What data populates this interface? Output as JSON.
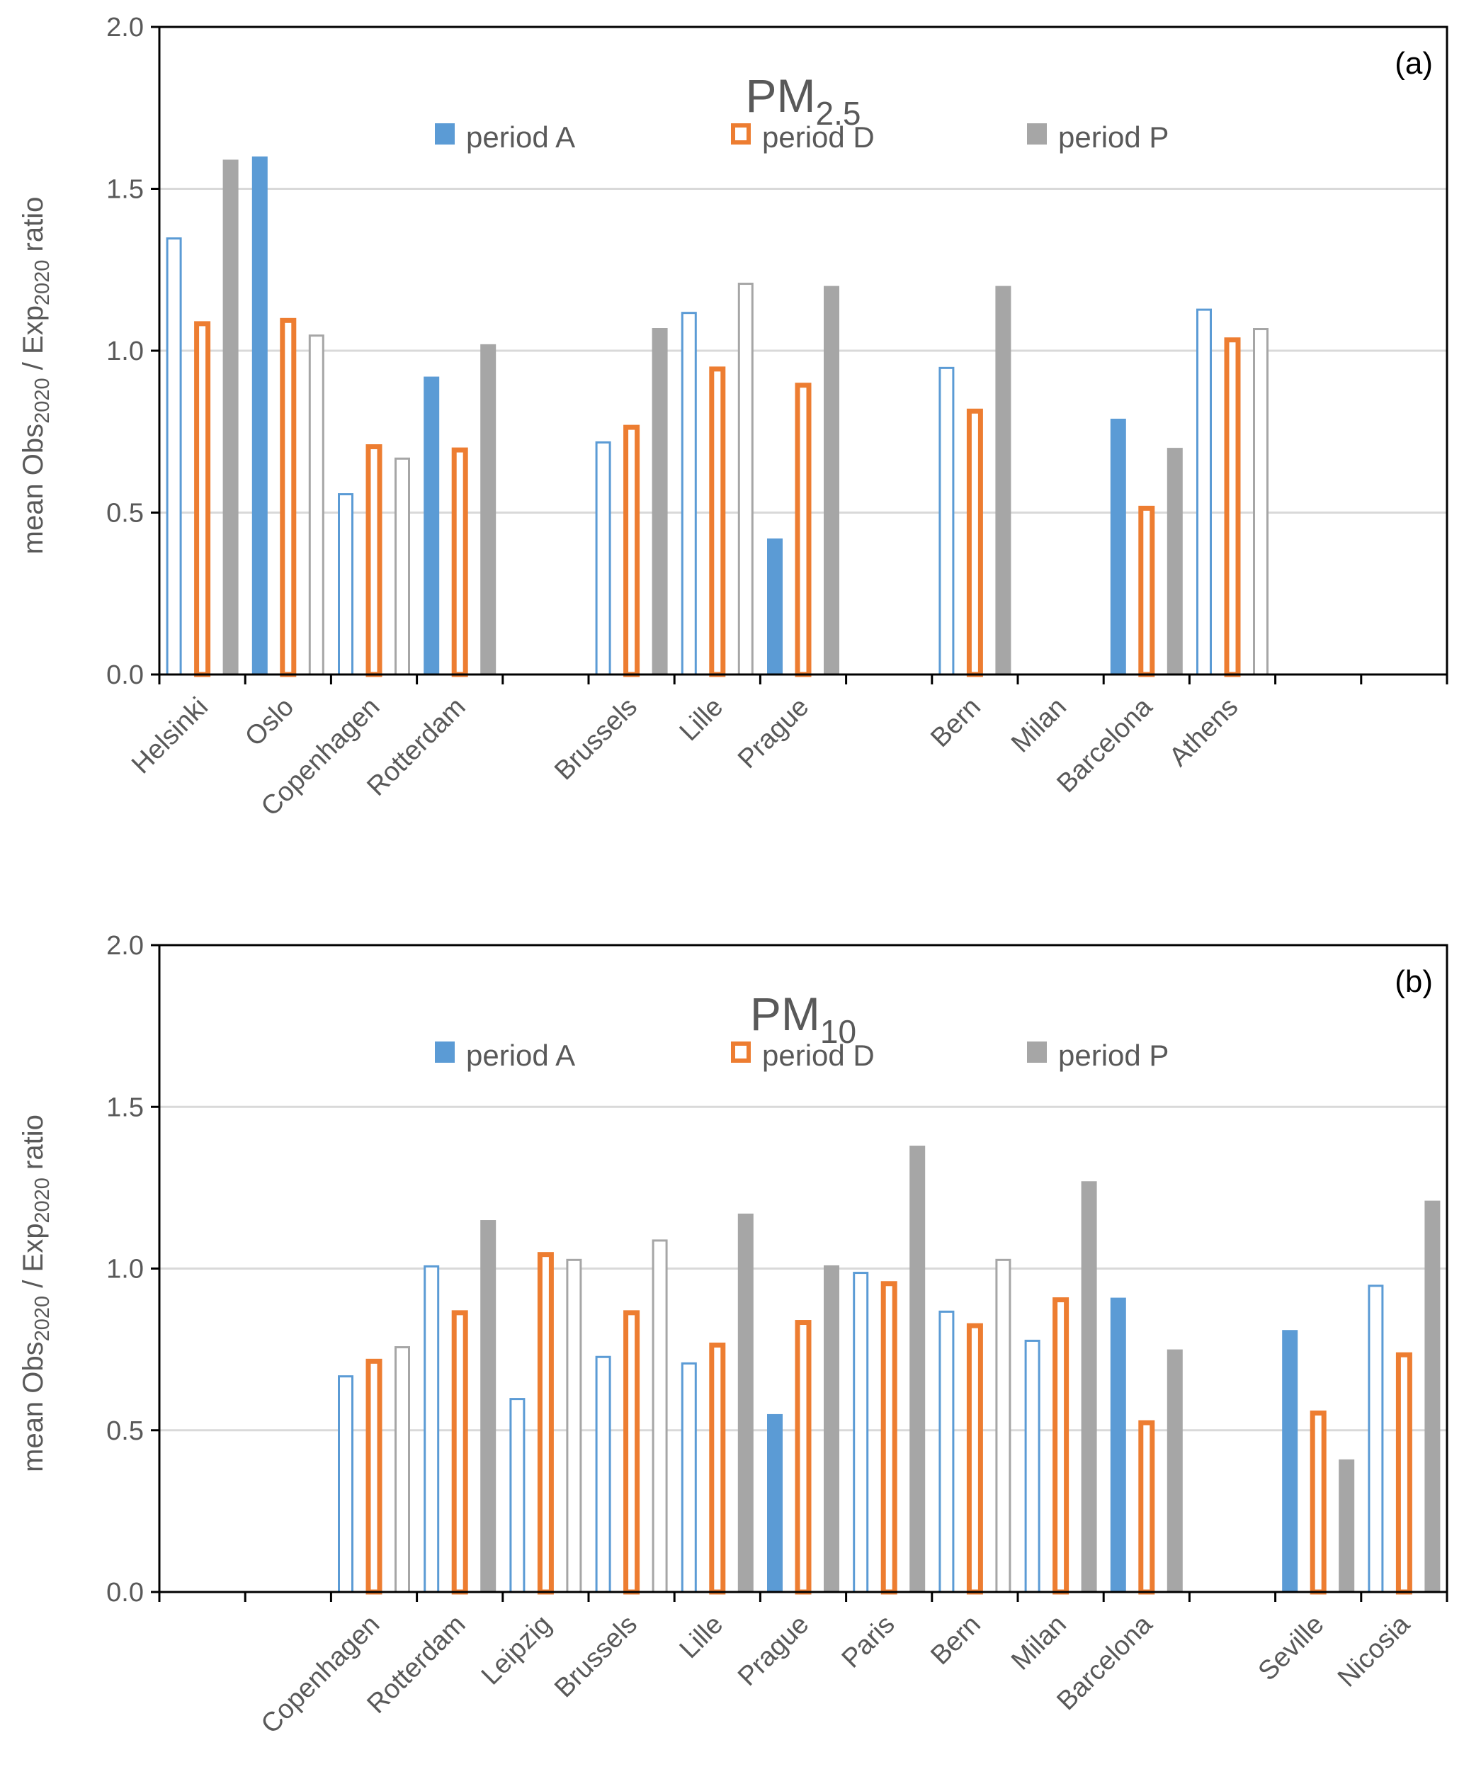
{
  "colors": {
    "periodA": "#5b9bd5",
    "periodD": "#ed7d31",
    "periodP": "#a6a6a6",
    "grid": "#d9d9d9",
    "axis": "#000000",
    "text": "#595959"
  },
  "chart_data": [
    {
      "type": "bar",
      "panel": "(a)",
      "title": "PM",
      "title_sub": "2.5",
      "ylabel": {
        "pre": "mean Obs",
        "sub1": "2020",
        "mid": " / Exp",
        "sub2": "2020",
        "post": " ratio"
      },
      "ylim": [
        0,
        2
      ],
      "yticks": [
        0,
        0.5,
        1,
        1.5,
        2
      ],
      "ytick_labels": [
        "0.0",
        "0.5",
        "1.0",
        "1.5",
        "2.0"
      ],
      "grid": true,
      "legend": {
        "labels": [
          "period A",
          "period D",
          "period P"
        ],
        "placement": "top-center"
      },
      "categories": [
        "Helsinki",
        "Oslo",
        "Copenhagen",
        "Rotterdam",
        "",
        "Brussels",
        "Lille",
        "Prague",
        "",
        "Bern",
        "Milan",
        "Barcelona",
        "Athens",
        "",
        ""
      ],
      "series": [
        {
          "name": "period A",
          "values": [
            1.35,
            1.6,
            0.56,
            0.92,
            null,
            0.72,
            1.12,
            0.42,
            null,
            0.95,
            null,
            0.79,
            1.13,
            null,
            null
          ],
          "filled": [
            false,
            true,
            false,
            true,
            null,
            false,
            false,
            true,
            null,
            false,
            null,
            true,
            false,
            null,
            null
          ]
        },
        {
          "name": "period D",
          "values": [
            1.09,
            1.1,
            0.71,
            0.7,
            null,
            0.77,
            0.95,
            0.9,
            null,
            0.82,
            null,
            0.52,
            1.04,
            null,
            null
          ],
          "filled": [
            false,
            false,
            false,
            false,
            null,
            false,
            false,
            false,
            null,
            false,
            null,
            false,
            false,
            null,
            null
          ]
        },
        {
          "name": "period P",
          "values": [
            1.59,
            1.05,
            0.67,
            1.02,
            null,
            1.07,
            1.21,
            1.2,
            null,
            1.2,
            null,
            0.7,
            1.07,
            null,
            null
          ],
          "filled": [
            true,
            false,
            false,
            true,
            null,
            true,
            false,
            true,
            null,
            true,
            null,
            true,
            false,
            null,
            null
          ]
        }
      ]
    },
    {
      "type": "bar",
      "panel": "(b)",
      "title": "PM",
      "title_sub": "10",
      "ylabel": {
        "pre": "mean Obs",
        "sub1": "2020",
        "mid": " / Exp",
        "sub2": "2020",
        "post": " ratio"
      },
      "ylim": [
        0,
        2
      ],
      "yticks": [
        0,
        0.5,
        1,
        1.5,
        2
      ],
      "ytick_labels": [
        "0.0",
        "0.5",
        "1.0",
        "1.5",
        "2.0"
      ],
      "grid": true,
      "legend": {
        "labels": [
          "period A",
          "period D",
          "period P"
        ],
        "placement": "top-center"
      },
      "categories": [
        "",
        "",
        "Copenhagen",
        "Rotterdam",
        "Leipzig",
        "Brussels",
        "Lille",
        "Prague",
        "Paris",
        "Bern",
        "Milan",
        "Barcelona",
        "",
        "Seville",
        "Nicosia"
      ],
      "series": [
        {
          "name": "period A",
          "values": [
            null,
            null,
            0.67,
            1.01,
            0.6,
            0.73,
            0.71,
            0.55,
            0.99,
            0.87,
            0.78,
            0.91,
            null,
            0.81,
            0.95
          ],
          "filled": [
            null,
            null,
            false,
            false,
            false,
            false,
            false,
            true,
            false,
            false,
            false,
            true,
            null,
            true,
            false
          ]
        },
        {
          "name": "period D",
          "values": [
            null,
            null,
            0.72,
            0.87,
            1.05,
            0.87,
            0.77,
            0.84,
            0.96,
            0.83,
            0.91,
            0.53,
            null,
            0.56,
            0.74
          ],
          "filled": [
            null,
            null,
            false,
            false,
            false,
            false,
            false,
            false,
            false,
            false,
            false,
            false,
            null,
            false,
            false
          ]
        },
        {
          "name": "period P",
          "values": [
            null,
            null,
            0.76,
            1.15,
            1.03,
            1.09,
            1.17,
            1.01,
            1.38,
            1.03,
            1.27,
            0.75,
            null,
            0.41,
            1.21
          ],
          "filled": [
            null,
            null,
            false,
            true,
            false,
            false,
            true,
            true,
            true,
            false,
            true,
            true,
            null,
            true,
            true
          ]
        }
      ]
    }
  ]
}
